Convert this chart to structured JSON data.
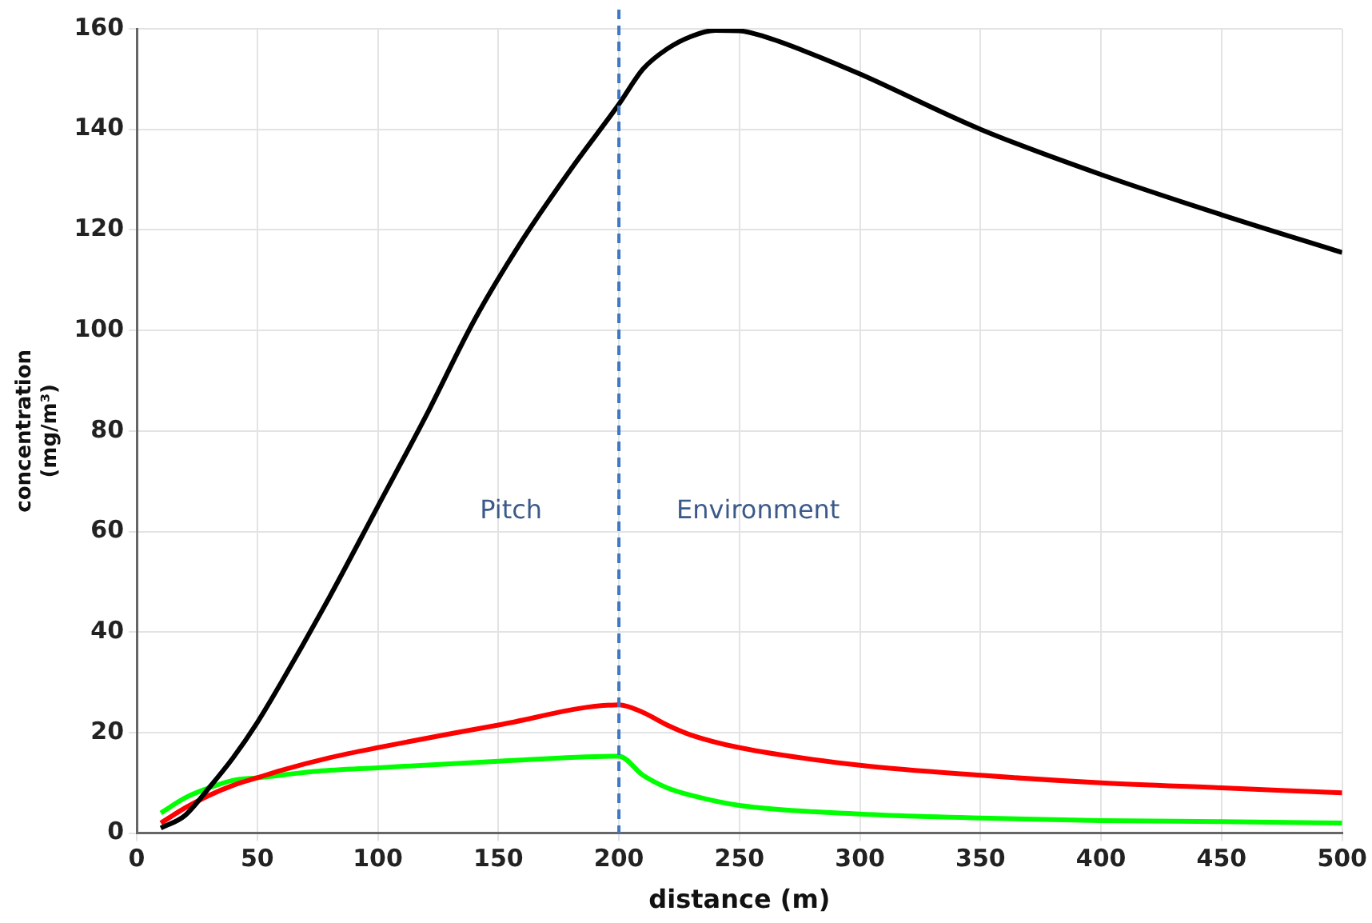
{
  "chart_data": {
    "type": "line",
    "xlabel": "distance (m)",
    "ylabel": "concentration (mg/m³)",
    "xlim": [
      0,
      500
    ],
    "xticks": [
      0,
      50,
      100,
      150,
      200,
      250,
      300,
      350,
      400,
      450,
      500
    ],
    "ylim": [
      0,
      160
    ],
    "yticks": [
      0,
      20,
      40,
      60,
      80,
      100,
      120,
      140,
      160
    ],
    "grid": true,
    "legend": false,
    "marker": "none",
    "line_style": "solid",
    "series": [
      {
        "color": "#000000",
        "x": [
          10,
          20,
          30,
          40,
          50,
          60,
          80,
          100,
          120,
          140,
          160,
          180,
          200,
          210,
          220,
          230,
          240,
          250,
          260,
          280,
          300,
          350,
          400,
          450,
          500
        ],
        "values": [
          1,
          3.5,
          9,
          15,
          22,
          30,
          47,
          65,
          83,
          102,
          118,
          132,
          145,
          152,
          156,
          158.5,
          159.7,
          159.6,
          158.5,
          155,
          151,
          140,
          131,
          123,
          115.5
        ]
      },
      {
        "color": "#ff0000",
        "x": [
          10,
          20,
          30,
          40,
          50,
          60,
          80,
          100,
          150,
          200,
          210,
          220,
          230,
          250,
          300,
          350,
          400,
          450,
          500
        ],
        "values": [
          2,
          5,
          7.5,
          9.5,
          11,
          12.5,
          15,
          17,
          21.5,
          25.5,
          24,
          21.5,
          19.5,
          17,
          13.5,
          11.5,
          10,
          9,
          8
        ]
      },
      {
        "color": "#00ff00",
        "x": [
          10,
          20,
          30,
          40,
          50,
          75,
          100,
          150,
          200,
          210,
          220,
          230,
          250,
          300,
          350,
          400,
          450,
          500
        ],
        "values": [
          4,
          7,
          9,
          10.5,
          11,
          12.3,
          13,
          14.3,
          15.3,
          11.5,
          9,
          7.5,
          5.5,
          3.8,
          3,
          2.5,
          2.3,
          2
        ]
      }
    ],
    "ref_lines": [
      {
        "axis": "x",
        "value": 200,
        "color": "#3d78c4",
        "line_style": "dashed"
      }
    ],
    "annotations": [
      "Pitch",
      "Environment"
    ]
  }
}
